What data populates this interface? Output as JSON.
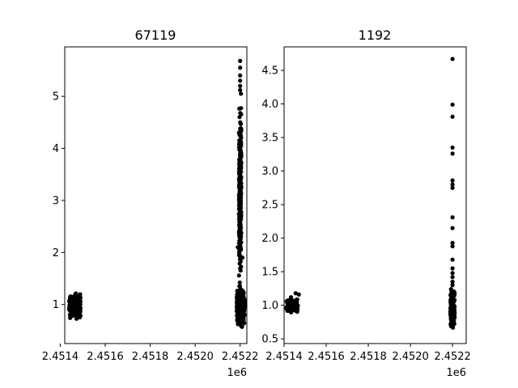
{
  "figure": {
    "background": "#ffffff",
    "marker_color": "#000000"
  },
  "chart_data": [
    {
      "type": "scatter",
      "title": "67119",
      "xlabel": "",
      "ylabel": "",
      "x_offset_label": "1e6",
      "xlim": [
        2.45142,
        2.45223
      ],
      "ylim": [
        0.25,
        5.95
      ],
      "xticks": [
        2.4514,
        2.4516,
        2.4518,
        2.452,
        2.4522
      ],
      "xtick_labels": [
        "2.4514",
        "2.4516",
        "2.4518",
        "2.4520",
        "2.4522"
      ],
      "yticks": [
        1,
        2,
        3,
        4,
        5
      ],
      "ytick_labels": [
        "1",
        "2",
        "3",
        "4",
        "5"
      ],
      "grid": false,
      "series": [
        {
          "color": "#000000",
          "clusters": [
            {
              "x_range": [
                2.45144,
                2.45149
              ],
              "y_range": [
                0.72,
                1.26
              ],
              "n": 220
            },
            {
              "x_range": [
                2.452185,
                2.45222
              ],
              "y_range": [
                0.55,
                1.35
              ],
              "n": 320
            },
            {
              "x_range": [
                2.452195,
                2.452205
              ],
              "y_range": [
                1.35,
                5.05
              ],
              "n": 260
            }
          ],
          "points": [
            {
              "x": 2.4522,
              "y": 5.68
            },
            {
              "x": 2.4522,
              "y": 5.55
            },
            {
              "x": 2.4522,
              "y": 5.4
            },
            {
              "x": 2.4522,
              "y": 5.3
            },
            {
              "x": 2.4522,
              "y": 5.2
            },
            {
              "x": 2.4522,
              "y": 5.12
            },
            {
              "x": 2.45219,
              "y": 2.1
            },
            {
              "x": 2.45221,
              "y": 1.9
            }
          ]
        }
      ]
    },
    {
      "type": "scatter",
      "title": "1192",
      "xlabel": "",
      "ylabel": "",
      "x_offset_label": "1e6",
      "xlim": [
        2.4514,
        2.452265
      ],
      "ylim": [
        0.43,
        4.85
      ],
      "xticks": [
        2.4514,
        2.4516,
        2.4518,
        2.452,
        2.4522
      ],
      "xtick_labels": [
        "2.4514",
        "2.4516",
        "2.4518",
        "2.4520",
        "2.4522"
      ],
      "yticks": [
        0.5,
        1.0,
        1.5,
        2.0,
        2.5,
        3.0,
        3.5,
        4.0,
        4.5
      ],
      "ytick_labels": [
        "0.5",
        "1.0",
        "1.5",
        "2.0",
        "2.5",
        "3.0",
        "3.5",
        "4.0",
        "4.5"
      ],
      "grid": false,
      "series": [
        {
          "color": "#000000",
          "clusters": [
            {
              "x_range": [
                2.45141,
                2.451465
              ],
              "y_range": [
                0.88,
                1.12
              ],
              "n": 140
            },
            {
              "x_range": [
                2.45219,
                2.45221
              ],
              "y_range": [
                0.63,
                1.28
              ],
              "n": 190
            }
          ],
          "points": [
            {
              "x": 2.451455,
              "y": 1.18
            },
            {
              "x": 2.45147,
              "y": 1.16
            },
            {
              "x": 2.4522,
              "y": 4.67
            },
            {
              "x": 2.4522,
              "y": 3.99
            },
            {
              "x": 2.4522,
              "y": 3.81
            },
            {
              "x": 2.4522,
              "y": 3.35
            },
            {
              "x": 2.4522,
              "y": 3.26
            },
            {
              "x": 2.4522,
              "y": 2.86
            },
            {
              "x": 2.4522,
              "y": 2.8
            },
            {
              "x": 2.4522,
              "y": 2.75
            },
            {
              "x": 2.4522,
              "y": 2.31
            },
            {
              "x": 2.4522,
              "y": 2.15
            },
            {
              "x": 2.4522,
              "y": 1.93
            },
            {
              "x": 2.4522,
              "y": 1.88
            },
            {
              "x": 2.4522,
              "y": 1.68
            },
            {
              "x": 2.4522,
              "y": 1.55
            },
            {
              "x": 2.4522,
              "y": 1.48
            },
            {
              "x": 2.4522,
              "y": 1.42
            },
            {
              "x": 2.4522,
              "y": 1.35
            },
            {
              "x": 2.4522,
              "y": 1.3
            }
          ]
        }
      ]
    }
  ]
}
